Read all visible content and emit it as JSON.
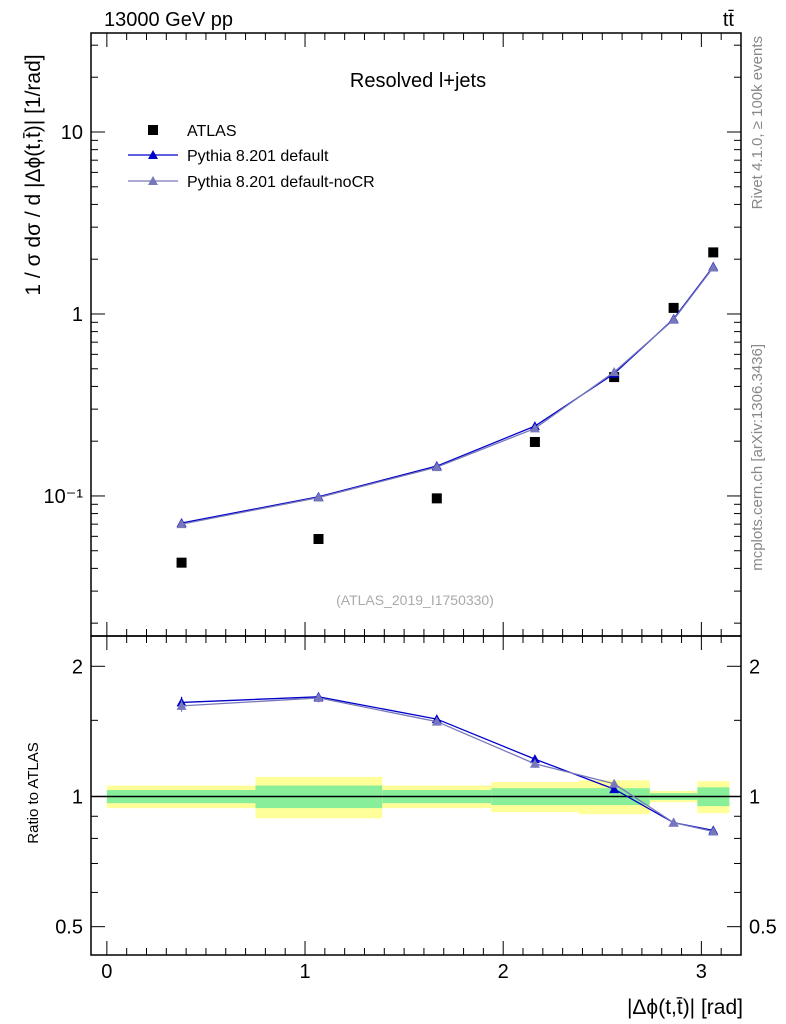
{
  "header": {
    "energy_label": "13000 GeV pp",
    "process_label": "tt̄"
  },
  "side_labels": {
    "rivet": "Rivet 4.1.0, ≥ 100k events",
    "mcplots": "mcplots.cern.ch [arXiv:1306.3436]"
  },
  "chart_data": [
    {
      "panel": "main",
      "type": "scatter",
      "title": "Resolved l+jets",
      "watermark": "(ATLAS_2019_I1750330)",
      "ylabel": "1 / σ dσ / d |Δϕ(t,t̄)| [1/rad]",
      "yscale": "log",
      "ylim": [
        0.017,
        35
      ],
      "xlim": [
        -0.08,
        3.2
      ],
      "yticks": [
        {
          "value": 0.1,
          "label": "10⁻¹"
        },
        {
          "value": 1,
          "label": "1"
        },
        {
          "value": 10,
          "label": "10"
        }
      ],
      "legend_position": "top-left",
      "series": [
        {
          "name": "ATLAS",
          "color": "#000000",
          "marker": "square",
          "x": [
            0.377,
            1.068,
            1.665,
            2.16,
            2.56,
            2.86,
            3.06
          ],
          "values": [
            0.043,
            0.058,
            0.097,
            0.198,
            0.45,
            1.08,
            2.18
          ]
        },
        {
          "name": "Pythia 8.201 default",
          "color": "#0000cc",
          "marker": "triangle",
          "x": [
            0.377,
            1.068,
            1.665,
            2.16,
            2.56,
            2.86,
            3.06
          ],
          "values": [
            0.071,
            0.099,
            0.146,
            0.242,
            0.47,
            0.94,
            1.82
          ]
        },
        {
          "name": "Pythia 8.201 default-noCR",
          "color": "#7777bb",
          "marker": "triangle",
          "x": [
            0.377,
            1.068,
            1.665,
            2.16,
            2.56,
            2.86,
            3.06
          ],
          "values": [
            0.07,
            0.098,
            0.144,
            0.235,
            0.48,
            0.93,
            1.8
          ]
        }
      ]
    },
    {
      "panel": "ratio",
      "type": "line",
      "ylabel": "Ratio to ATLAS",
      "xlabel": "|Δϕ(t,t̄)| [rad]",
      "yscale": "log",
      "ylim": [
        0.43,
        2.35
      ],
      "xlim": [
        -0.08,
        3.2
      ],
      "xticks": [
        0,
        1,
        2,
        3
      ],
      "yticks": [
        {
          "value": 0.5,
          "label": "0.5"
        },
        {
          "value": 1,
          "label": "1"
        },
        {
          "value": 2,
          "label": "2"
        }
      ],
      "bins": [
        0.0,
        0.75,
        1.39,
        1.94,
        2.38,
        2.74,
        2.98,
        3.14159
      ],
      "band_inner": [
        0.035,
        0.06,
        0.035,
        0.045,
        0.045,
        0.018,
        0.05
      ],
      "band_outer": [
        0.06,
        0.11,
        0.06,
        0.08,
        0.09,
        0.03,
        0.085
      ],
      "colors": {
        "inner": "#88ee99",
        "outer": "#ffff99"
      },
      "series": [
        {
          "name": "Pythia 8.201 default",
          "color": "#0000cc",
          "x": [
            0.377,
            1.068,
            1.665,
            2.16,
            2.56,
            2.86,
            3.06
          ],
          "values": [
            1.65,
            1.7,
            1.51,
            1.22,
            1.04,
            0.87,
            0.835
          ],
          "err": [
            0.05,
            0.04,
            0.03,
            0.025,
            0.02,
            0.01,
            0.01
          ]
        },
        {
          "name": "Pythia 8.201 default-noCR",
          "color": "#7777bb",
          "x": [
            0.377,
            1.068,
            1.665,
            2.16,
            2.56,
            2.86,
            3.06
          ],
          "values": [
            1.62,
            1.69,
            1.49,
            1.19,
            1.07,
            0.87,
            0.83
          ],
          "err": [
            0.05,
            0.04,
            0.03,
            0.025,
            0.02,
            0.01,
            0.01
          ]
        }
      ]
    }
  ]
}
